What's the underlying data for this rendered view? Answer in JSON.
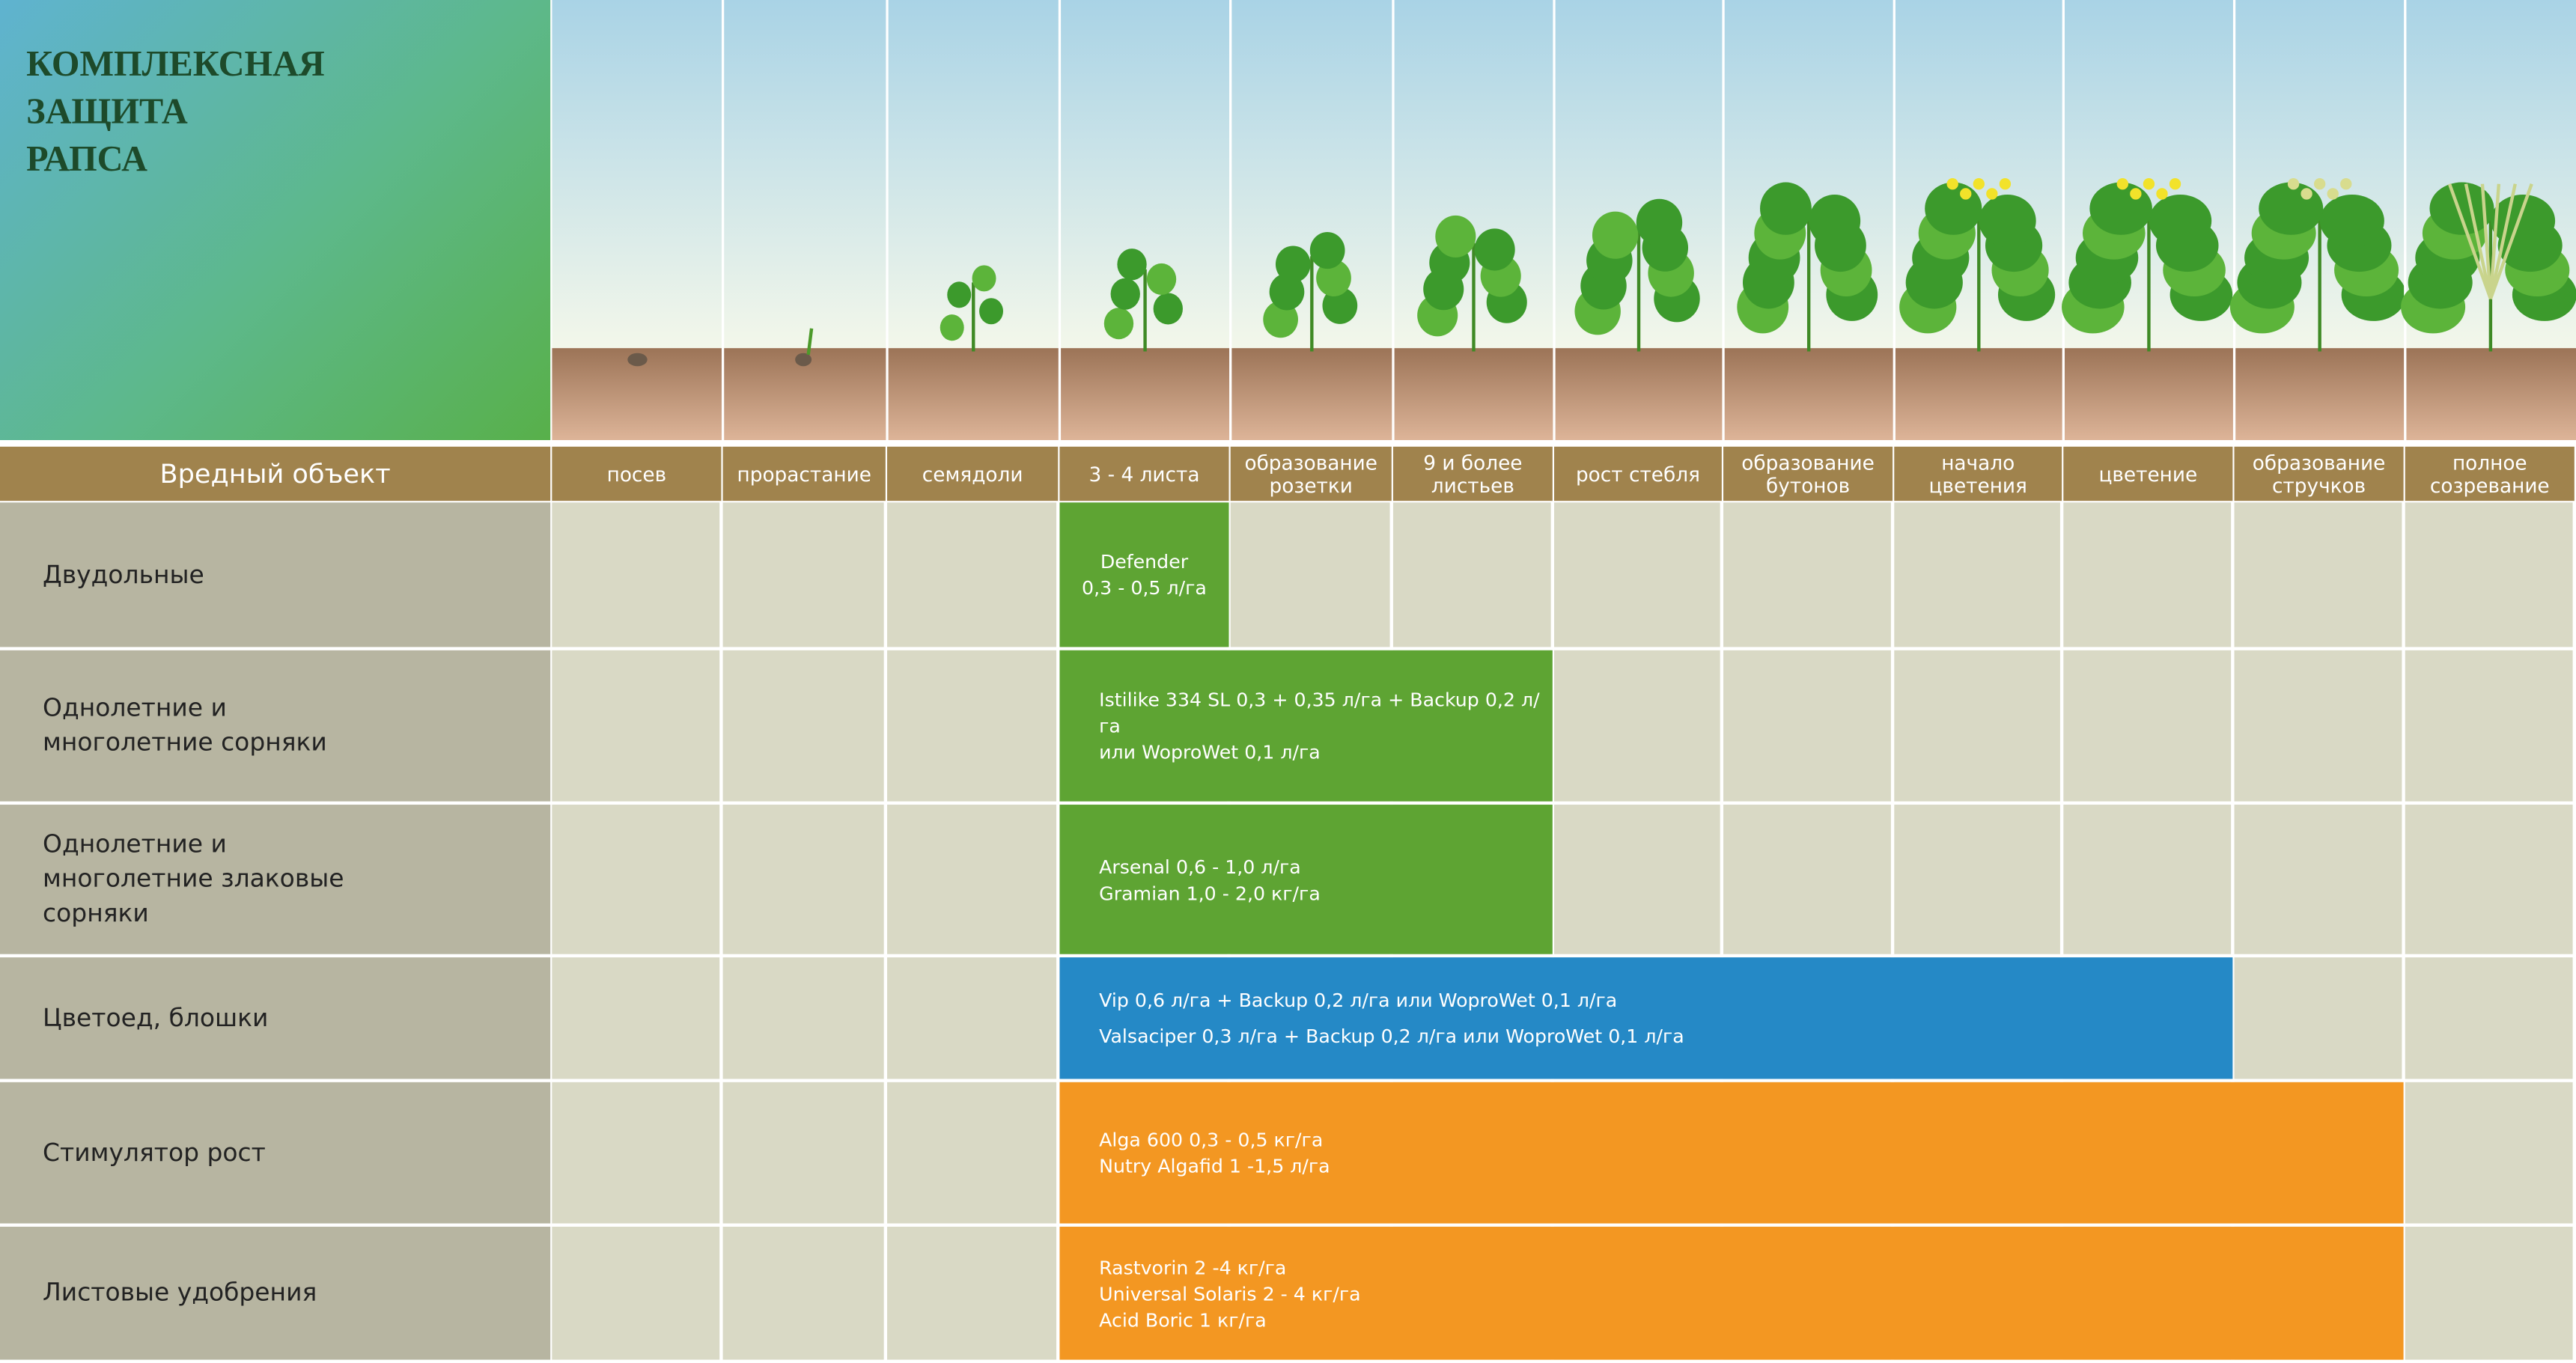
{
  "title_lines": [
    "КОМПЛЕКСНАЯ",
    "ЗАЩИТА",
    "РАПСА"
  ],
  "header": "Вредный объект",
  "stages": [
    "посев",
    "прорастание",
    "семядоли",
    "3 - 4 листа",
    "образование розетки",
    "9 и более листьев",
    "рост стебля",
    "образование бутонов",
    "начало цветения",
    "цветение",
    "образование стручков",
    "полное созревание"
  ],
  "rows": [
    {
      "label": "Двудольные",
      "treatment": {
        "lines": [
          "Defender",
          "0,3 - 0,5 л/га"
        ],
        "start": "3 - 4 листа",
        "end": "3 - 4 листа",
        "color": "#5ea433"
      }
    },
    {
      "label": "Однолетние и многолетние сорняки",
      "treatment": {
        "lines": [
          "Istilike 334 SL 0,3 + 0,35 л/га + Backup 0,2 л/га",
          "или WoproWet 0,1 л/га"
        ],
        "start": "3 - 4 листа",
        "end": "9 и более листьев",
        "color": "#5ea433"
      }
    },
    {
      "label": "Однолетние и многолетние злаковые сорняки",
      "treatment": {
        "lines": [
          "Arsenal 0,6 - 1,0 л/га",
          "Gramian 1,0 - 2,0  кг/га"
        ],
        "start": "3 - 4 листа",
        "end": "9 и более листьев",
        "color": "#5ea433"
      }
    },
    {
      "label": "Цветоед, блошки",
      "treatment": {
        "lines": [
          "Vip 0,6 л/га + Backup 0,2 л/га или WoproWet 0,1 л/га",
          "Valsaciper 0,3 л/га + Backup 0,2 л/га или WoproWet 0,1 л/га"
        ],
        "start": "3 - 4 листа",
        "end": "цветение",
        "color": "#2589c6"
      }
    },
    {
      "label": "Стимулятор рост",
      "treatment": {
        "lines": [
          "Alga 600 0,3 - 0,5 кг/га",
          "Nutry Algafid 1 -1,5 л/га"
        ],
        "start": "3 - 4 листа",
        "end": "образование стручков",
        "color": "#f39722"
      }
    },
    {
      "label": "Листовые удобрения",
      "treatment": {
        "lines": [
          "Rastvorin 2 -4 кг/га",
          "Universal Solaris 2 - 4 кг/га",
          "Acid Boric 1 кг/га"
        ],
        "start": "3 - 4 листа",
        "end": "образование стручков",
        "color": "#f39722"
      }
    }
  ]
}
